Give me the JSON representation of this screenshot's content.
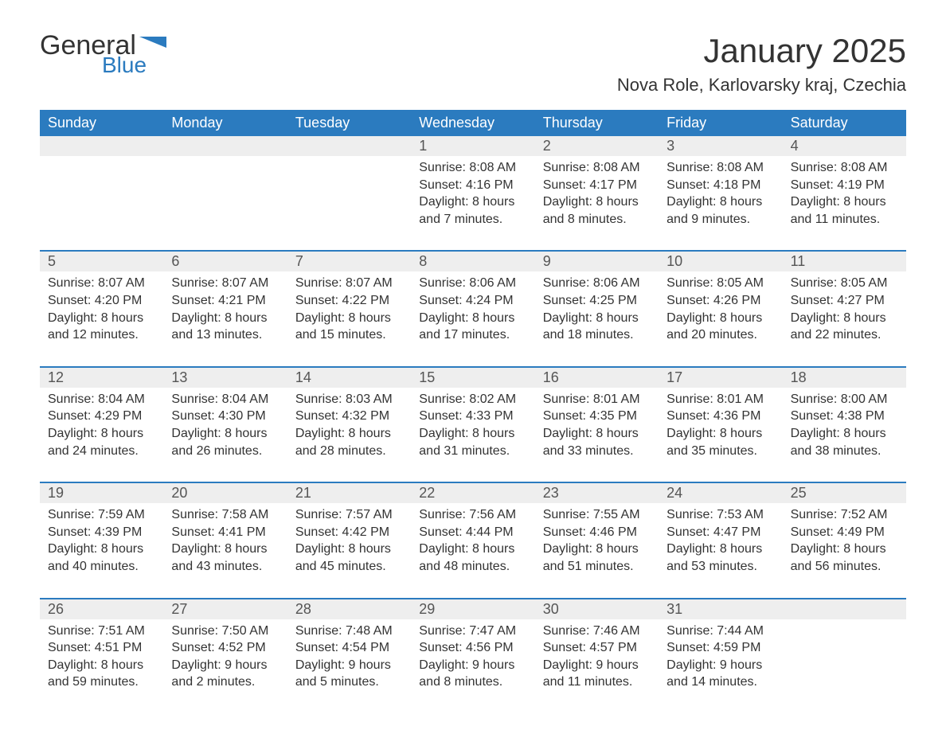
{
  "logo": {
    "text1": "General",
    "text2": "Blue",
    "accent_color": "#2b7bbf"
  },
  "title": "January 2025",
  "location": "Nova Role, Karlovarsky kraj, Czechia",
  "header_bg": "#2b7bbf",
  "header_text_color": "#ffffff",
  "daynum_bg": "#eeeeee",
  "border_color": "#2b7bbf",
  "background_color": "#ffffff",
  "text_color": "#333333",
  "weekdays": [
    "Sunday",
    "Monday",
    "Tuesday",
    "Wednesday",
    "Thursday",
    "Friday",
    "Saturday"
  ],
  "weeks": [
    {
      "days": [
        {
          "num": "",
          "sunrise": "",
          "sunset": "",
          "daylight1": "",
          "daylight2": ""
        },
        {
          "num": "",
          "sunrise": "",
          "sunset": "",
          "daylight1": "",
          "daylight2": ""
        },
        {
          "num": "",
          "sunrise": "",
          "sunset": "",
          "daylight1": "",
          "daylight2": ""
        },
        {
          "num": "1",
          "sunrise": "Sunrise: 8:08 AM",
          "sunset": "Sunset: 4:16 PM",
          "daylight1": "Daylight: 8 hours",
          "daylight2": "and 7 minutes."
        },
        {
          "num": "2",
          "sunrise": "Sunrise: 8:08 AM",
          "sunset": "Sunset: 4:17 PM",
          "daylight1": "Daylight: 8 hours",
          "daylight2": "and 8 minutes."
        },
        {
          "num": "3",
          "sunrise": "Sunrise: 8:08 AM",
          "sunset": "Sunset: 4:18 PM",
          "daylight1": "Daylight: 8 hours",
          "daylight2": "and 9 minutes."
        },
        {
          "num": "4",
          "sunrise": "Sunrise: 8:08 AM",
          "sunset": "Sunset: 4:19 PM",
          "daylight1": "Daylight: 8 hours",
          "daylight2": "and 11 minutes."
        }
      ]
    },
    {
      "days": [
        {
          "num": "5",
          "sunrise": "Sunrise: 8:07 AM",
          "sunset": "Sunset: 4:20 PM",
          "daylight1": "Daylight: 8 hours",
          "daylight2": "and 12 minutes."
        },
        {
          "num": "6",
          "sunrise": "Sunrise: 8:07 AM",
          "sunset": "Sunset: 4:21 PM",
          "daylight1": "Daylight: 8 hours",
          "daylight2": "and 13 minutes."
        },
        {
          "num": "7",
          "sunrise": "Sunrise: 8:07 AM",
          "sunset": "Sunset: 4:22 PM",
          "daylight1": "Daylight: 8 hours",
          "daylight2": "and 15 minutes."
        },
        {
          "num": "8",
          "sunrise": "Sunrise: 8:06 AM",
          "sunset": "Sunset: 4:24 PM",
          "daylight1": "Daylight: 8 hours",
          "daylight2": "and 17 minutes."
        },
        {
          "num": "9",
          "sunrise": "Sunrise: 8:06 AM",
          "sunset": "Sunset: 4:25 PM",
          "daylight1": "Daylight: 8 hours",
          "daylight2": "and 18 minutes."
        },
        {
          "num": "10",
          "sunrise": "Sunrise: 8:05 AM",
          "sunset": "Sunset: 4:26 PM",
          "daylight1": "Daylight: 8 hours",
          "daylight2": "and 20 minutes."
        },
        {
          "num": "11",
          "sunrise": "Sunrise: 8:05 AM",
          "sunset": "Sunset: 4:27 PM",
          "daylight1": "Daylight: 8 hours",
          "daylight2": "and 22 minutes."
        }
      ]
    },
    {
      "days": [
        {
          "num": "12",
          "sunrise": "Sunrise: 8:04 AM",
          "sunset": "Sunset: 4:29 PM",
          "daylight1": "Daylight: 8 hours",
          "daylight2": "and 24 minutes."
        },
        {
          "num": "13",
          "sunrise": "Sunrise: 8:04 AM",
          "sunset": "Sunset: 4:30 PM",
          "daylight1": "Daylight: 8 hours",
          "daylight2": "and 26 minutes."
        },
        {
          "num": "14",
          "sunrise": "Sunrise: 8:03 AM",
          "sunset": "Sunset: 4:32 PM",
          "daylight1": "Daylight: 8 hours",
          "daylight2": "and 28 minutes."
        },
        {
          "num": "15",
          "sunrise": "Sunrise: 8:02 AM",
          "sunset": "Sunset: 4:33 PM",
          "daylight1": "Daylight: 8 hours",
          "daylight2": "and 31 minutes."
        },
        {
          "num": "16",
          "sunrise": "Sunrise: 8:01 AM",
          "sunset": "Sunset: 4:35 PM",
          "daylight1": "Daylight: 8 hours",
          "daylight2": "and 33 minutes."
        },
        {
          "num": "17",
          "sunrise": "Sunrise: 8:01 AM",
          "sunset": "Sunset: 4:36 PM",
          "daylight1": "Daylight: 8 hours",
          "daylight2": "and 35 minutes."
        },
        {
          "num": "18",
          "sunrise": "Sunrise: 8:00 AM",
          "sunset": "Sunset: 4:38 PM",
          "daylight1": "Daylight: 8 hours",
          "daylight2": "and 38 minutes."
        }
      ]
    },
    {
      "days": [
        {
          "num": "19",
          "sunrise": "Sunrise: 7:59 AM",
          "sunset": "Sunset: 4:39 PM",
          "daylight1": "Daylight: 8 hours",
          "daylight2": "and 40 minutes."
        },
        {
          "num": "20",
          "sunrise": "Sunrise: 7:58 AM",
          "sunset": "Sunset: 4:41 PM",
          "daylight1": "Daylight: 8 hours",
          "daylight2": "and 43 minutes."
        },
        {
          "num": "21",
          "sunrise": "Sunrise: 7:57 AM",
          "sunset": "Sunset: 4:42 PM",
          "daylight1": "Daylight: 8 hours",
          "daylight2": "and 45 minutes."
        },
        {
          "num": "22",
          "sunrise": "Sunrise: 7:56 AM",
          "sunset": "Sunset: 4:44 PM",
          "daylight1": "Daylight: 8 hours",
          "daylight2": "and 48 minutes."
        },
        {
          "num": "23",
          "sunrise": "Sunrise: 7:55 AM",
          "sunset": "Sunset: 4:46 PM",
          "daylight1": "Daylight: 8 hours",
          "daylight2": "and 51 minutes."
        },
        {
          "num": "24",
          "sunrise": "Sunrise: 7:53 AM",
          "sunset": "Sunset: 4:47 PM",
          "daylight1": "Daylight: 8 hours",
          "daylight2": "and 53 minutes."
        },
        {
          "num": "25",
          "sunrise": "Sunrise: 7:52 AM",
          "sunset": "Sunset: 4:49 PM",
          "daylight1": "Daylight: 8 hours",
          "daylight2": "and 56 minutes."
        }
      ]
    },
    {
      "days": [
        {
          "num": "26",
          "sunrise": "Sunrise: 7:51 AM",
          "sunset": "Sunset: 4:51 PM",
          "daylight1": "Daylight: 8 hours",
          "daylight2": "and 59 minutes."
        },
        {
          "num": "27",
          "sunrise": "Sunrise: 7:50 AM",
          "sunset": "Sunset: 4:52 PM",
          "daylight1": "Daylight: 9 hours",
          "daylight2": "and 2 minutes."
        },
        {
          "num": "28",
          "sunrise": "Sunrise: 7:48 AM",
          "sunset": "Sunset: 4:54 PM",
          "daylight1": "Daylight: 9 hours",
          "daylight2": "and 5 minutes."
        },
        {
          "num": "29",
          "sunrise": "Sunrise: 7:47 AM",
          "sunset": "Sunset: 4:56 PM",
          "daylight1": "Daylight: 9 hours",
          "daylight2": "and 8 minutes."
        },
        {
          "num": "30",
          "sunrise": "Sunrise: 7:46 AM",
          "sunset": "Sunset: 4:57 PM",
          "daylight1": "Daylight: 9 hours",
          "daylight2": "and 11 minutes."
        },
        {
          "num": "31",
          "sunrise": "Sunrise: 7:44 AM",
          "sunset": "Sunset: 4:59 PM",
          "daylight1": "Daylight: 9 hours",
          "daylight2": "and 14 minutes."
        },
        {
          "num": "",
          "sunrise": "",
          "sunset": "",
          "daylight1": "",
          "daylight2": ""
        }
      ]
    }
  ]
}
